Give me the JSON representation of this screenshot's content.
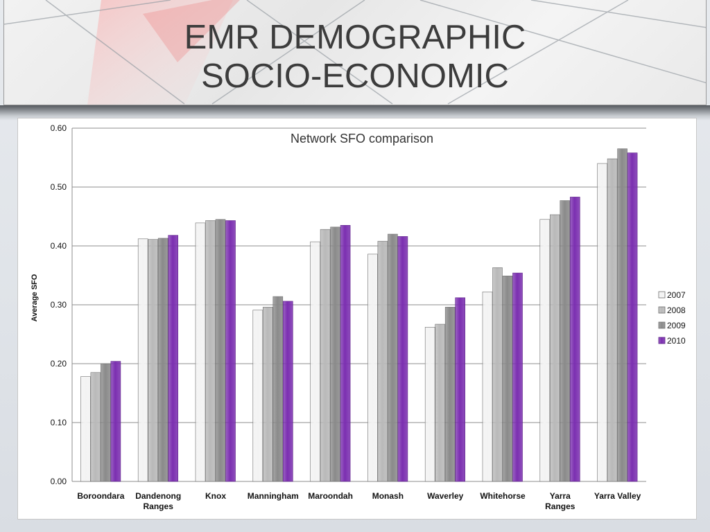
{
  "slide": {
    "title_line1": "EMR DEMOGRAPHIC",
    "title_line2": "SOCIO-ECONOMIC"
  },
  "chart_data": {
    "type": "bar",
    "title": "Network SFO comparison",
    "xlabel": "",
    "ylabel": "Average SFO",
    "ylim": [
      0,
      0.6
    ],
    "yticks": [
      "0.00",
      "0.10",
      "0.20",
      "0.30",
      "0.40",
      "0.50",
      "0.60"
    ],
    "grid": true,
    "legend_position": "right",
    "categories": [
      [
        "Boroondara"
      ],
      [
        "Dandenong",
        "Ranges"
      ],
      [
        "Knox"
      ],
      [
        "Manningham"
      ],
      [
        "Maroondah"
      ],
      [
        "Monash"
      ],
      [
        "Waverley"
      ],
      [
        "Whitehorse"
      ],
      [
        "Yarra",
        "Ranges"
      ],
      [
        "Yarra Valley"
      ]
    ],
    "series": [
      {
        "name": "2007",
        "color": "#f3f3f3",
        "values": [
          0.178,
          0.412,
          0.439,
          0.291,
          0.407,
          0.386,
          0.262,
          0.322,
          0.445,
          0.54
        ]
      },
      {
        "name": "2008",
        "color": "#b9b9b9",
        "values": [
          0.185,
          0.411,
          0.443,
          0.296,
          0.428,
          0.408,
          0.267,
          0.363,
          0.453,
          0.548
        ]
      },
      {
        "name": "2009",
        "color": "#8a8a8a",
        "values": [
          0.2,
          0.413,
          0.445,
          0.314,
          0.432,
          0.42,
          0.296,
          0.349,
          0.477,
          0.565
        ]
      },
      {
        "name": "2010",
        "color": "#7b2fb0",
        "values": [
          0.204,
          0.418,
          0.443,
          0.306,
          0.435,
          0.416,
          0.312,
          0.354,
          0.483,
          0.558
        ]
      }
    ]
  }
}
